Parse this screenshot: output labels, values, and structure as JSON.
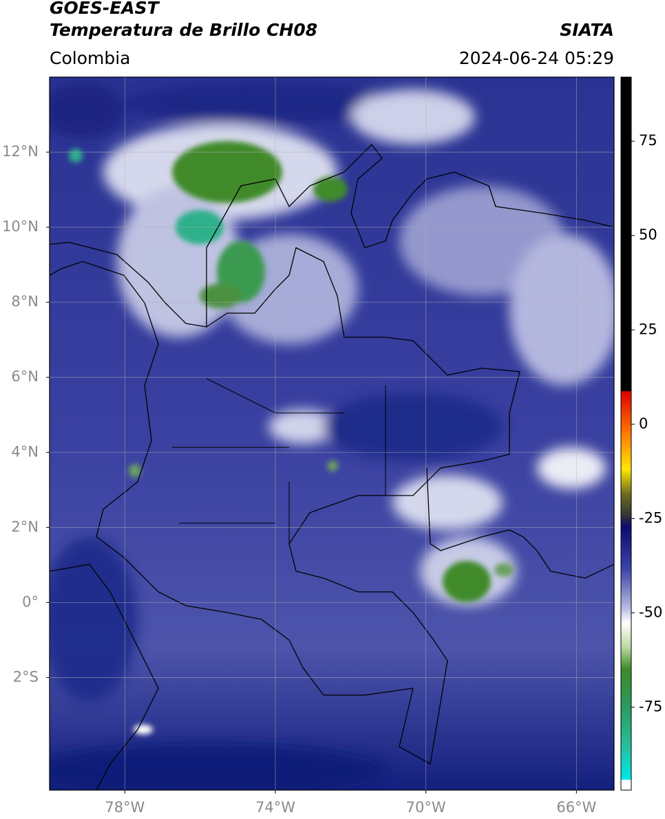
{
  "header": {
    "title": "GOES-EAST",
    "subtitle": "Temperatura de Brillo CH08",
    "source": "SIATA",
    "region": "Colombia",
    "datetime": "2024-06-24 05:29"
  },
  "map": {
    "xlim": [
      -80,
      -65
    ],
    "ylim": [
      -5,
      14
    ],
    "xticks": [
      {
        "value": -78,
        "label": "78°W"
      },
      {
        "value": -74,
        "label": "74°W"
      },
      {
        "value": -70,
        "label": "70°W"
      },
      {
        "value": -66,
        "label": "66°W"
      }
    ],
    "yticks": [
      {
        "value": 12,
        "label": "12°N"
      },
      {
        "value": 10,
        "label": "10°N"
      },
      {
        "value": 8,
        "label": "8°N"
      },
      {
        "value": 6,
        "label": "6°N"
      },
      {
        "value": 4,
        "label": "4°N"
      },
      {
        "value": 2,
        "label": "2°N"
      },
      {
        "value": 0,
        "label": "0°"
      },
      {
        "value": -2,
        "label": "2°S"
      }
    ],
    "grid": true
  },
  "colorbar": {
    "lim": [
      -97,
      92
    ],
    "ticks": [
      75,
      50,
      25,
      0,
      -25,
      -50,
      -75
    ]
  }
}
